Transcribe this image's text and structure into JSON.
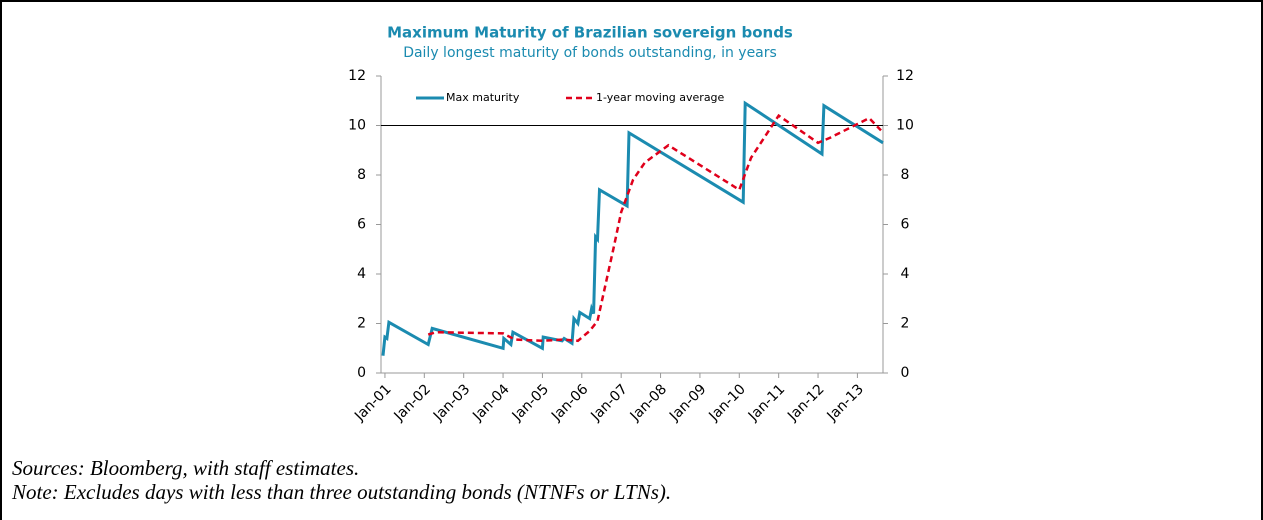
{
  "chart_data": {
    "type": "line",
    "title": "Maximum Maturity of Brazilian sovereign bonds",
    "subtitle": "Daily longest maturity of bonds outstanding, in years",
    "series": [
      {
        "name": "Max maturity",
        "color": "#1b8bb0",
        "line_style": "solid",
        "x": [
          2000.95,
          2001.0,
          2001.05,
          2001.1,
          2002.1,
          2002.2,
          2004.0,
          2004.02,
          2004.2,
          2004.25,
          2005.0,
          2005.02,
          2005.5,
          2005.55,
          2005.75,
          2005.8,
          2005.9,
          2005.95,
          2006.2,
          2006.25,
          2006.3,
          2006.35,
          2006.4,
          2006.45,
          2007.15,
          2007.2,
          2010.1,
          2010.15,
          2012.1,
          2012.15,
          2013.65
        ],
        "values": [
          0.7,
          1.45,
          1.4,
          2.05,
          1.15,
          1.8,
          1.0,
          1.4,
          1.15,
          1.65,
          1.0,
          1.45,
          1.3,
          1.4,
          1.2,
          2.2,
          2.0,
          2.45,
          2.2,
          2.6,
          2.4,
          5.5,
          5.4,
          7.4,
          6.75,
          9.7,
          6.9,
          10.9,
          8.85,
          10.8,
          9.3
        ]
      },
      {
        "name": "1-year moving average",
        "color": "#e0001b",
        "line_style": "dashed",
        "x": [
          2002.1,
          2002.3,
          2004.0,
          2004.3,
          2005.0,
          2005.5,
          2005.9,
          2006.2,
          2006.4,
          2006.8,
          2007.0,
          2007.3,
          2007.6,
          2008.2,
          2010.0,
          2010.3,
          2011.0,
          2012.0,
          2012.3,
          2013.3,
          2013.6
        ],
        "values": [
          1.55,
          1.65,
          1.6,
          1.35,
          1.3,
          1.35,
          1.3,
          1.7,
          2.1,
          5.0,
          6.5,
          7.8,
          8.5,
          9.2,
          7.4,
          8.7,
          10.4,
          9.3,
          9.5,
          10.3,
          9.8
        ]
      }
    ],
    "xlim": [
      2000.9,
      2013.65
    ],
    "xticks": [
      {
        "value": 2001,
        "label": "Jan-01"
      },
      {
        "value": 2002,
        "label": "Jan-02"
      },
      {
        "value": 2003,
        "label": "Jan-03"
      },
      {
        "value": 2004,
        "label": "Jan-04"
      },
      {
        "value": 2005,
        "label": "Jan-05"
      },
      {
        "value": 2006,
        "label": "Jan-06"
      },
      {
        "value": 2007,
        "label": "Jan-07"
      },
      {
        "value": 2008,
        "label": "Jan-08"
      },
      {
        "value": 2009,
        "label": "Jan-09"
      },
      {
        "value": 2010,
        "label": "Jan-10"
      },
      {
        "value": 2011,
        "label": "Jan-11"
      },
      {
        "value": 2012,
        "label": "Jan-12"
      },
      {
        "value": 2013,
        "label": "Jan-13"
      }
    ],
    "ylim": [
      0,
      12
    ],
    "yticks": [
      0,
      2,
      4,
      6,
      8,
      10,
      12
    ],
    "y2lim": [
      0,
      12
    ],
    "y2ticks": [
      0,
      2,
      4,
      6,
      8,
      10,
      12
    ],
    "reference_line": 10,
    "legend": "upper left"
  },
  "notes": [
    "Sources: Bloomberg, with staff estimates.",
    "Note: Excludes days with less than three outstanding bonds (NTNFs or LTNs)."
  ]
}
